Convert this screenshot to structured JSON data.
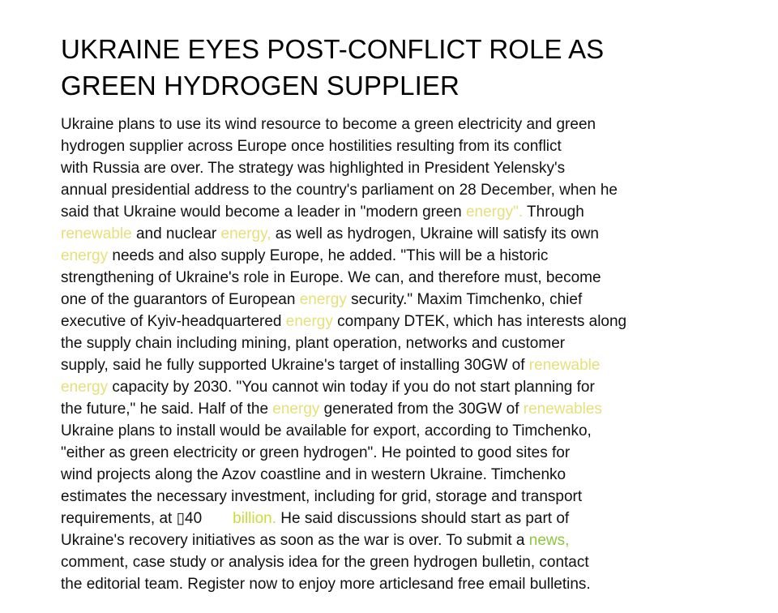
{
  "article": {
    "headline": [
      "UKRAINE EYES POST-CONFLICT ROLE AS",
      "GREEN HYDROGEN SUPPLIER"
    ],
    "lines": [
      [
        {
          "t": "Ukraine plans to use its wind resource to become a green electricity and green",
          "s": "plain"
        }
      ],
      [
        {
          "t": "hydrogen supplier across Europe once hostilities resulting from its conflict",
          "s": "plain"
        }
      ],
      [
        {
          "t": "with Russia are over. The strategy was highlighted in President Yelensky's",
          "s": "plain"
        }
      ],
      [
        {
          "t": "annual presidential address to the country's parliament on 28 December, when he",
          "s": "plain"
        }
      ],
      [
        {
          "t": "said that Ukraine would become a leader in \"modern green ",
          "s": "plain"
        },
        {
          "t": "energy\".",
          "s": "link"
        },
        {
          "t": " Through",
          "s": "plain"
        }
      ],
      [
        {
          "t": "renewable",
          "s": "link"
        },
        {
          "t": " and nuclear ",
          "s": "plain"
        },
        {
          "t": "energy,",
          "s": "link"
        },
        {
          "t": " as well as hydrogen, Ukraine will satisfy its own",
          "s": "plain"
        }
      ],
      [
        {
          "t": "energy",
          "s": "link"
        },
        {
          "t": " needs and also supply Europe, he added. \"This will be a historic",
          "s": "plain"
        }
      ],
      [
        {
          "t": "strengthening of Ukraine's role in Europe. We can, and therefore must, become",
          "s": "plain"
        }
      ],
      [
        {
          "t": "one of the guarantors of European ",
          "s": "plain"
        },
        {
          "t": "energy",
          "s": "link"
        },
        {
          "t": " security.\" Maxim Timchenko, chief",
          "s": "plain"
        }
      ],
      [
        {
          "t": "executive of Kyiv-headquartered ",
          "s": "plain"
        },
        {
          "t": "energy",
          "s": "link"
        },
        {
          "t": " company DTEK, which has interests along",
          "s": "plain"
        }
      ],
      [
        {
          "t": "the supply chain including mining, plant operation, networks and customer",
          "s": "plain"
        }
      ],
      [
        {
          "t": "supply, said he fully supported Ukraine's target of installing 30GW of ",
          "s": "plain"
        },
        {
          "t": "renewable",
          "s": "link"
        }
      ],
      [
        {
          "t": "energy",
          "s": "link"
        },
        {
          "t": " capacity by 2030. \"You cannot win today if you do not start planning for",
          "s": "plain"
        }
      ],
      [
        {
          "t": "the future,\" he said. Half of the ",
          "s": "plain"
        },
        {
          "t": "energy",
          "s": "link"
        },
        {
          "t": " generated from the 30GW of ",
          "s": "plain"
        },
        {
          "t": "renewables",
          "s": "link"
        }
      ],
      [
        {
          "t": "Ukraine plans to install would be available for export, according to Timchenko,",
          "s": "plain"
        }
      ],
      [
        {
          "t": "\"either as green electricity or green hydrogen\". He pointed to good sites for",
          "s": "plain"
        }
      ],
      [
        {
          "t": "wind projects along the Azov coastline and in western Ukraine. Timchenko",
          "s": "plain"
        }
      ],
      [
        {
          "t": "estimates the necessary investment, including for grid, storage and transport",
          "s": "plain"
        }
      ],
      [
        {
          "t": "requirements, at ▯40",
          "s": "plain"
        },
        {
          "t": "",
          "s": "gap"
        },
        {
          "t": "billion.",
          "s": "link2"
        },
        {
          "t": " He said discussions should start as part of",
          "s": "plain"
        }
      ],
      [
        {
          "t": "Ukraine's recovery initiatives as soon as the war is over. To submit a ",
          "s": "plain"
        },
        {
          "t": "news,",
          "s": "link3"
        }
      ],
      [
        {
          "t": "comment, case study or analysis idea for the green hydrogen bulletin, contact",
          "s": "plain"
        }
      ],
      [
        {
          "t": "the editorial team. Register now to enjoy more articlesand free email bulletins.",
          "s": "plain"
        }
      ]
    ]
  },
  "colors": {
    "keyword_link": "#e6e07a",
    "billion_link": "#c9dc3a",
    "news_link": "#8dc63f",
    "body_text": "#111111",
    "headline_text": "#000000"
  }
}
